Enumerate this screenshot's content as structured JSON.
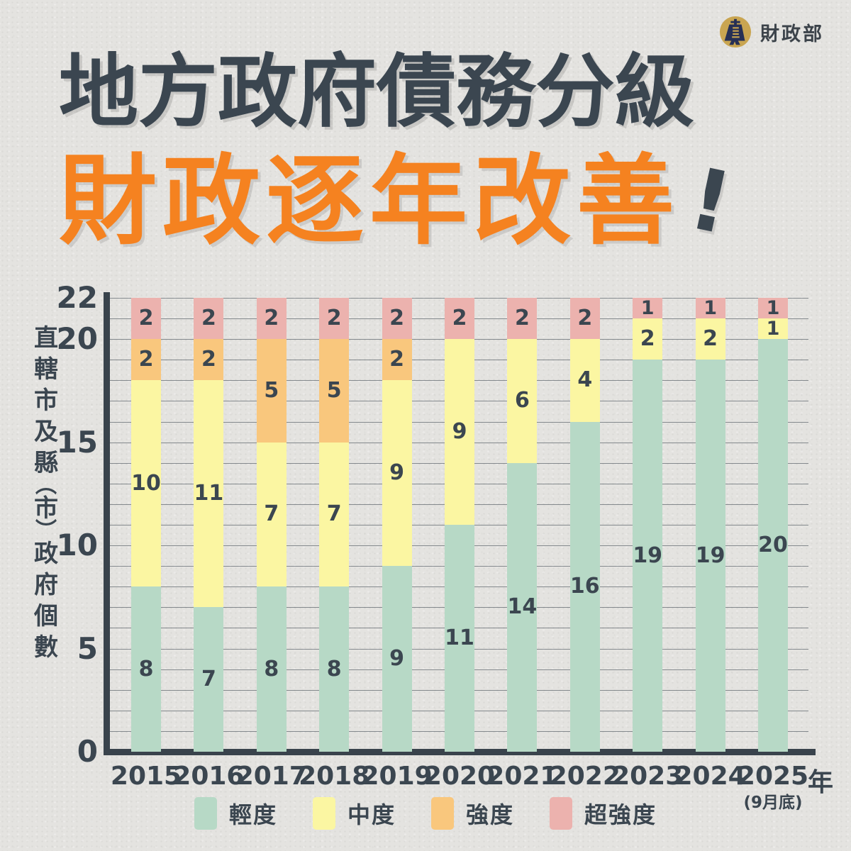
{
  "header": {
    "org_name": "財政部"
  },
  "title": {
    "line1": "地方政府債務分級",
    "line2": "財政逐年改善",
    "exclamation": "!"
  },
  "chart_data": {
    "type": "bar",
    "stacked": true,
    "categories": [
      "2015",
      "2016",
      "2017",
      "2018",
      "2019",
      "2020",
      "2021",
      "2022",
      "2023",
      "2024",
      "2025"
    ],
    "series": [
      {
        "name": "輕度",
        "color": "#b7d9c6",
        "values": [
          8,
          7,
          8,
          8,
          9,
          11,
          14,
          16,
          19,
          19,
          20
        ]
      },
      {
        "name": "中度",
        "color": "#fbf6a2",
        "values": [
          10,
          11,
          7,
          7,
          9,
          9,
          6,
          4,
          2,
          2,
          1
        ]
      },
      {
        "name": "強度",
        "color": "#f9c77d",
        "values": [
          2,
          2,
          5,
          5,
          2,
          0,
          0,
          0,
          0,
          0,
          0
        ]
      },
      {
        "name": "超強度",
        "color": "#ecb2ae",
        "values": [
          2,
          2,
          2,
          2,
          2,
          2,
          2,
          2,
          1,
          1,
          1
        ]
      }
    ],
    "bar_total": 22,
    "value_labels": true,
    "ylabel": "直轄市及縣(市)政府個數",
    "ylabel_chars": [
      "直",
      "轄",
      "市",
      "及",
      "縣",
      "︵",
      "市",
      "︶",
      "政",
      "府",
      "個",
      "數"
    ],
    "xlabel_unit": "年",
    "x_note": "(9月底)",
    "x_note_category": "2025",
    "ylim": [
      0,
      22
    ],
    "yticks": [
      0,
      5,
      10,
      15,
      20,
      22
    ],
    "grid": true,
    "grid_step": 1,
    "legend_position": "bottom"
  },
  "colors": {
    "background": "#e4e3e0",
    "axis": "#39434c",
    "text_dark": "#3b4650",
    "title_orange": "#f58220",
    "gridline": "#48525a",
    "logo_gold": "#c9a551",
    "logo_navy": "#273055"
  }
}
